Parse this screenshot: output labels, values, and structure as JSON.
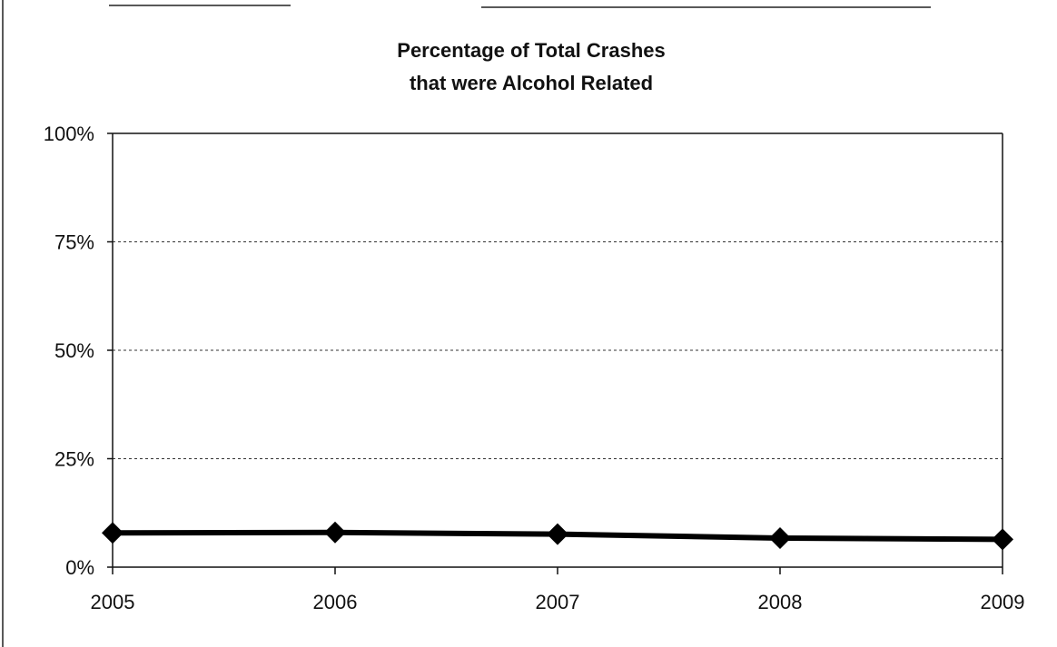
{
  "chart_data": {
    "type": "line",
    "title": [
      "Percentage of Total Crashes",
      "that were Alcohol Related"
    ],
    "xlabel": "",
    "ylabel": "",
    "x": [
      "2005",
      "2006",
      "2007",
      "2008",
      "2009"
    ],
    "series": [
      {
        "values": [
          7.9,
          8.0,
          7.6,
          6.7,
          6.4
        ]
      }
    ],
    "y_ticks": [
      0,
      25,
      50,
      75,
      100
    ],
    "y_tick_labels": [
      "0%",
      "25%",
      "50%",
      "75%",
      "100%"
    ],
    "ylim": [
      0,
      100
    ],
    "grid": true,
    "legend": "none",
    "colors": {
      "series": "#000000",
      "grid": "#333333",
      "axis": "#111111"
    }
  }
}
